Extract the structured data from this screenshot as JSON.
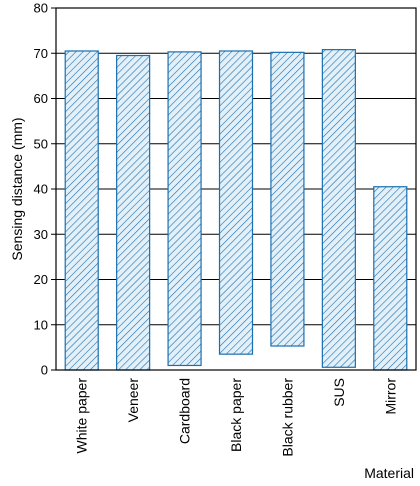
{
  "chart_data": {
    "type": "bar",
    "ylabel": "Sensing distance (mm)",
    "xlabel": "Material",
    "ylim": [
      0,
      80
    ],
    "yticks": [
      0,
      10,
      20,
      30,
      40,
      50,
      60,
      70,
      80
    ],
    "grid": true,
    "categories": [
      "White paper",
      "Veneer",
      "Cardboard",
      "Black paper",
      "Black rubber",
      "SUS",
      "Mirror"
    ],
    "ranges": [
      {
        "low": 0,
        "high": 70.5
      },
      {
        "low": 0,
        "high": 69.5
      },
      {
        "low": 1,
        "high": 70.3
      },
      {
        "low": 3.5,
        "high": 70.5
      },
      {
        "low": 5.3,
        "high": 70.2
      },
      {
        "low": 0.6,
        "high": 70.8
      },
      {
        "low": 0,
        "high": 40.5
      }
    ],
    "bar_color": "#1a6fb0",
    "bar_fill": "#e3f0f8",
    "hatch": "diagonal"
  }
}
